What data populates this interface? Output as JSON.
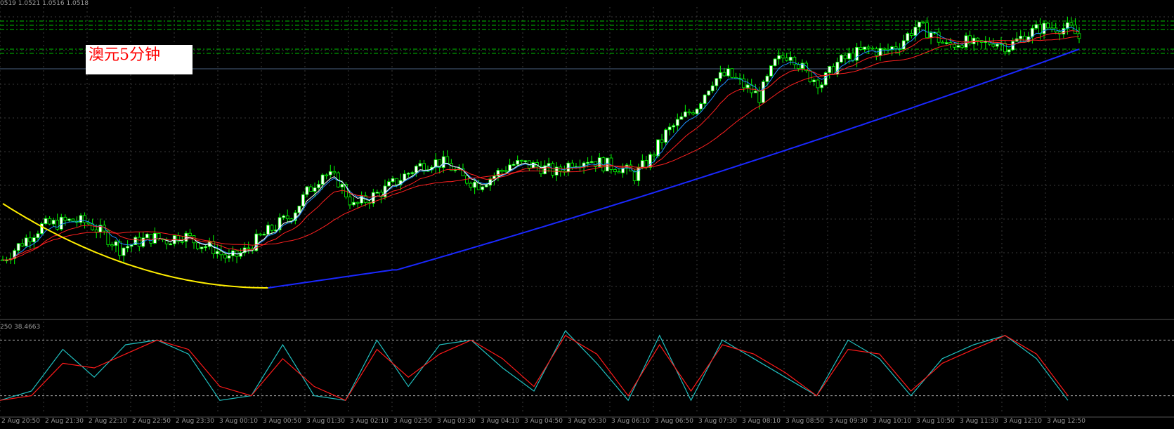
{
  "header": {
    "ohlc_text": "0519 1.0521 1.0516 1.0518"
  },
  "label_box": {
    "text": "澳元5分钟"
  },
  "stochastic": {
    "header_text": "250 38.4663"
  },
  "colors": {
    "background": "#000000",
    "grid": "#3a3a3a",
    "bull_candle": "#ffffff",
    "candle_outline": "#00ff00",
    "level_line": "#00c000",
    "ma_fast": "#1e90ff",
    "ma_overlay": "#ffffff",
    "ma_mid": "#ff2020",
    "ma_slow_blue": "#1a28ff",
    "ma_slow_yellow": "#ffee00",
    "stoch_main": "#20c0c0",
    "stoch_signal": "#ff1a1a"
  },
  "chart_data": [
    {
      "type": "candlestick",
      "title": "",
      "price_levels": [
        1.053,
        1.0527,
        1.0524,
        1.051,
        1.0507
      ],
      "ylim": [
        1.032,
        1.054
      ],
      "x_ticks": [
        "2 Aug 20:50",
        "2 Aug 21:30",
        "2 Aug 22:10",
        "2 Aug 22:50",
        "2 Aug 23:30",
        "3 Aug 00:10",
        "3 Aug 00:50",
        "3 Aug 01:30",
        "3 Aug 02:10",
        "3 Aug 02:50",
        "3 Aug 03:30",
        "3 Aug 04:10",
        "3 Aug 04:50",
        "3 Aug 05:30",
        "3 Aug 06:10",
        "3 Aug 06:50",
        "3 Aug 07:30",
        "3 Aug 08:10",
        "3 Aug 08:50",
        "3 Aug 09:30",
        "3 Aug 10:10",
        "3 Aug 10:50",
        "3 Aug 11:30",
        "3 Aug 12:10",
        "3 Aug 12:50"
      ],
      "close_path": [
        [
          0,
          1.036
        ],
        [
          6,
          1.0375
        ],
        [
          10,
          1.0384
        ],
        [
          14,
          1.0386
        ],
        [
          18,
          1.0388
        ],
        [
          22,
          1.0386
        ],
        [
          26,
          1.0378
        ],
        [
          30,
          1.0368
        ],
        [
          34,
          1.0372
        ],
        [
          38,
          1.0376
        ],
        [
          42,
          1.0374
        ],
        [
          46,
          1.0378
        ],
        [
          50,
          1.0372
        ],
        [
          54,
          1.0368
        ],
        [
          58,
          1.036
        ],
        [
          62,
          1.0366
        ],
        [
          66,
          1.0376
        ],
        [
          70,
          1.0384
        ],
        [
          74,
          1.0392
        ],
        [
          78,
          1.0408
        ],
        [
          82,
          1.0422
        ],
        [
          86,
          1.0416
        ],
        [
          90,
          1.0398
        ],
        [
          94,
          1.0404
        ],
        [
          98,
          1.041
        ],
        [
          102,
          1.0418
        ],
        [
          106,
          1.0426
        ],
        [
          110,
          1.043
        ],
        [
          114,
          1.0428
        ],
        [
          118,
          1.0418
        ],
        [
          122,
          1.0414
        ],
        [
          126,
          1.042
        ],
        [
          130,
          1.0428
        ],
        [
          134,
          1.0428
        ],
        [
          138,
          1.0426
        ],
        [
          142,
          1.0422
        ],
        [
          146,
          1.043
        ],
        [
          150,
          1.0432
        ],
        [
          154,
          1.0428
        ],
        [
          158,
          1.0426
        ],
        [
          162,
          1.042
        ],
        [
          166,
          1.0432
        ],
        [
          170,
          1.045
        ],
        [
          174,
          1.046
        ],
        [
          178,
          1.047
        ],
        [
          182,
          1.0488
        ],
        [
          186,
          1.0492
        ],
        [
          190,
          1.0484
        ],
        [
          194,
          1.0476
        ],
        [
          198,
          1.05
        ],
        [
          202,
          1.0508
        ],
        [
          206,
          1.0492
        ],
        [
          210,
          1.0486
        ],
        [
          214,
          1.05
        ],
        [
          218,
          1.0506
        ],
        [
          222,
          1.051
        ],
        [
          226,
          1.0508
        ],
        [
          230,
          1.0514
        ],
        [
          234,
          1.0526
        ],
        [
          238,
          1.0522
        ],
        [
          242,
          1.0512
        ],
        [
          246,
          1.0516
        ],
        [
          250,
          1.0512
        ],
        [
          254,
          1.0516
        ],
        [
          258,
          1.0512
        ],
        [
          262,
          1.052
        ],
        [
          266,
          1.0525
        ],
        [
          270,
          1.0526
        ],
        [
          274,
          1.0524
        ],
        [
          276,
          1.0518
        ]
      ],
      "n_bars": 277
    },
    {
      "type": "line",
      "title": "",
      "ylim": [
        0,
        100
      ],
      "levels": [
        80,
        20
      ],
      "series": [
        {
          "values": [
            15,
            25,
            70,
            40,
            75,
            80,
            65,
            15,
            20,
            75,
            20,
            15,
            80,
            30,
            75,
            80,
            50,
            25,
            90,
            55,
            15,
            85,
            15,
            80,
            60,
            40,
            20,
            80,
            60,
            20,
            60,
            75,
            85,
            60,
            15
          ]
        },
        {
          "values": [
            15,
            20,
            55,
            50,
            65,
            80,
            70,
            30,
            20,
            60,
            30,
            15,
            70,
            40,
            65,
            80,
            60,
            30,
            85,
            65,
            20,
            75,
            25,
            75,
            65,
            45,
            20,
            70,
            65,
            25,
            55,
            70,
            85,
            65,
            20
          ]
        }
      ]
    }
  ]
}
